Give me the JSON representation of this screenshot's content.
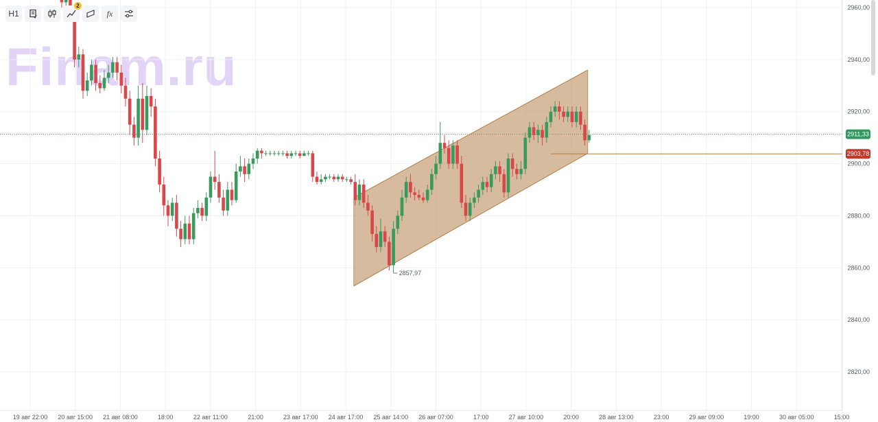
{
  "toolbar": {
    "interval_label": "H1",
    "fx_label": "fx",
    "indicators_badge": "2",
    "icons": [
      "instrument-info-icon",
      "chart-type-candles-icon",
      "indicators-icon",
      "drawing-tools-icon",
      "formula-icon",
      "settings-sliders-icon"
    ]
  },
  "watermark": "Finam.ru",
  "colors": {
    "up": "#3a9a5e",
    "down": "#d9474b",
    "channel_fill": "#c8a178",
    "channel_line": "#b07c44",
    "current_tag": "#2e9a5f",
    "level_tag": "#c0392b",
    "level_line": "#b07c44",
    "grid": "#eef0f3"
  },
  "chart_data": {
    "type": "candlestick",
    "y_axis": {
      "range": [
        2805,
        2966
      ],
      "ticks": [
        "2960,00",
        "2940,00",
        "2920,00",
        "2900,00",
        "2880,00",
        "2860,00",
        "2840,00",
        "2820,00"
      ],
      "tick_values": [
        2960,
        2940,
        2920,
        2900,
        2880,
        2860,
        2840,
        2820
      ]
    },
    "x_axis": {
      "ticks": [
        "19 авг 22:00",
        "20 авг 15:00",
        "21 авг 08:00",
        "18:00",
        "22 авг 11:00",
        "21:00",
        "23 авг 17:00",
        "24 авг 17:00",
        "25 авг 14:00",
        "26 авг 07:00",
        "17:00",
        "27 авг 10:00",
        "20:00",
        "28 авг 13:00",
        "23:00",
        "29 авг 09:00",
        "19:00",
        "30 авг 05:00",
        "15:00"
      ]
    },
    "grid": true,
    "current_price": {
      "value": 2911.33,
      "label": "2911,33"
    },
    "level_line": {
      "value": 2903.78,
      "label": "2903,78"
    },
    "low_annotation": {
      "value": 2857.97,
      "label": "2857,97"
    },
    "channel": {
      "lower_start": 2853,
      "lower_end": 2904,
      "upper_start": 2887,
      "upper_end": 2936
    },
    "candles": [
      [
        2965,
        2962,
        2967,
        2960
      ],
      [
        2962,
        2965,
        2967,
        2960
      ],
      [
        2965,
        2958,
        2967,
        2955
      ],
      [
        2958,
        2940,
        2961,
        2937
      ],
      [
        2940,
        2942,
        2945,
        2937
      ],
      [
        2942,
        2928,
        2944,
        2925
      ],
      [
        2928,
        2932,
        2935,
        2926
      ],
      [
        2932,
        2938,
        2940,
        2930
      ],
      [
        2938,
        2931,
        2940,
        2928
      ],
      [
        2931,
        2929,
        2934,
        2927
      ],
      [
        2929,
        2933,
        2936,
        2928
      ],
      [
        2933,
        2935,
        2938,
        2931
      ],
      [
        2935,
        2939,
        2941,
        2933
      ],
      [
        2939,
        2935,
        2941,
        2932
      ],
      [
        2935,
        2930,
        2938,
        2927
      ],
      [
        2930,
        2925,
        2933,
        2922
      ],
      [
        2925,
        2915,
        2928,
        2911
      ],
      [
        2915,
        2910,
        2918,
        2907
      ],
      [
        2910,
        2925,
        2930,
        2907
      ],
      [
        2925,
        2913,
        2931,
        2908
      ],
      [
        2913,
        2926,
        2930,
        2911
      ],
      [
        2926,
        2922,
        2929,
        2918
      ],
      [
        2922,
        2902,
        2925,
        2899
      ],
      [
        2902,
        2892,
        2905,
        2889
      ],
      [
        2892,
        2884,
        2895,
        2880
      ],
      [
        2884,
        2880,
        2886,
        2876
      ],
      [
        2880,
        2885,
        2887,
        2878
      ],
      [
        2885,
        2875,
        2888,
        2872
      ],
      [
        2875,
        2871,
        2878,
        2868
      ],
      [
        2871,
        2877,
        2880,
        2869
      ],
      [
        2877,
        2871,
        2880,
        2869
      ],
      [
        2871,
        2881,
        2883,
        2869
      ],
      [
        2881,
        2883,
        2886,
        2879
      ],
      [
        2883,
        2880,
        2885,
        2878
      ],
      [
        2880,
        2887,
        2889,
        2878
      ],
      [
        2887,
        2895,
        2897,
        2885
      ],
      [
        2895,
        2893,
        2905,
        2890
      ],
      [
        2893,
        2887,
        2896,
        2885
      ],
      [
        2887,
        2882,
        2890,
        2880
      ],
      [
        2882,
        2890,
        2893,
        2880
      ],
      [
        2890,
        2886,
        2893,
        2884
      ],
      [
        2886,
        2897,
        2900,
        2885
      ],
      [
        2897,
        2899,
        2903,
        2895
      ],
      [
        2899,
        2896,
        2902,
        2893
      ],
      [
        2896,
        2900,
        2902,
        2894
      ],
      [
        2900,
        2902,
        2904,
        2898
      ],
      [
        2902,
        2905,
        2906,
        2900
      ],
      [
        2905,
        2904,
        2906,
        2902
      ],
      [
        2904,
        2904,
        2905,
        2903
      ],
      [
        2904,
        2904,
        2905,
        2903
      ],
      [
        2904,
        2904,
        2905,
        2903
      ],
      [
        2904,
        2904,
        2905,
        2903
      ],
      [
        2904,
        2904,
        2905,
        2903
      ],
      [
        2904,
        2903,
        2905,
        2902
      ],
      [
        2903,
        2904,
        2905,
        2902
      ],
      [
        2904,
        2904,
        2905,
        2903
      ],
      [
        2904,
        2903,
        2905,
        2902
      ],
      [
        2903,
        2904,
        2905,
        2903
      ],
      [
        2904,
        2904,
        2905,
        2903
      ],
      [
        2904,
        2895,
        2905,
        2893
      ],
      [
        2895,
        2893,
        2897,
        2892
      ],
      [
        2893,
        2894,
        2896,
        2892
      ],
      [
        2894,
        2895,
        2896,
        2893
      ],
      [
        2895,
        2895,
        2896,
        2894
      ],
      [
        2895,
        2894,
        2896,
        2893
      ],
      [
        2894,
        2895,
        2896,
        2893
      ],
      [
        2895,
        2894,
        2896,
        2893
      ],
      [
        2894,
        2894,
        2895,
        2893
      ],
      [
        2894,
        2893,
        2895,
        2892
      ],
      [
        2893,
        2886,
        2896,
        2884
      ],
      [
        2886,
        2892,
        2894,
        2884
      ],
      [
        2892,
        2885,
        2894,
        2883
      ],
      [
        2885,
        2882,
        2888,
        2880
      ],
      [
        2882,
        2873,
        2884,
        2870
      ],
      [
        2873,
        2868,
        2876,
        2866
      ],
      [
        2868,
        2874,
        2879,
        2866
      ],
      [
        2874,
        2870,
        2876,
        2868
      ],
      [
        2870,
        2861,
        2872,
        2859
      ],
      [
        2861,
        2875,
        2878,
        2858
      ],
      [
        2875,
        2880,
        2882,
        2873
      ],
      [
        2880,
        2887,
        2890,
        2878
      ],
      [
        2887,
        2893,
        2895,
        2885
      ],
      [
        2893,
        2889,
        2896,
        2887
      ],
      [
        2889,
        2888,
        2891,
        2886
      ],
      [
        2888,
        2887,
        2890,
        2886
      ],
      [
        2887,
        2886,
        2889,
        2885
      ],
      [
        2886,
        2890,
        2892,
        2885
      ],
      [
        2890,
        2896,
        2898,
        2888
      ],
      [
        2896,
        2900,
        2903,
        2894
      ],
      [
        2900,
        2908,
        2916,
        2898
      ],
      [
        2908,
        2906,
        2911,
        2904
      ],
      [
        2906,
        2900,
        2909,
        2898
      ],
      [
        2900,
        2907,
        2909,
        2898
      ],
      [
        2907,
        2900,
        2909,
        2898
      ],
      [
        2900,
        2885,
        2903,
        2883
      ],
      [
        2885,
        2880,
        2888,
        2878
      ],
      [
        2880,
        2885,
        2887,
        2878
      ],
      [
        2885,
        2887,
        2889,
        2883
      ],
      [
        2887,
        2890,
        2892,
        2885
      ],
      [
        2890,
        2893,
        2895,
        2888
      ],
      [
        2893,
        2891,
        2895,
        2889
      ],
      [
        2891,
        2896,
        2898,
        2889
      ],
      [
        2896,
        2899,
        2901,
        2894
      ],
      [
        2899,
        2896,
        2901,
        2893
      ],
      [
        2896,
        2889,
        2898,
        2887
      ],
      [
        2889,
        2902,
        2904,
        2887
      ],
      [
        2902,
        2898,
        2904,
        2895
      ],
      [
        2898,
        2896,
        2900,
        2894
      ],
      [
        2896,
        2898,
        2901,
        2894
      ],
      [
        2898,
        2910,
        2912,
        2896
      ],
      [
        2910,
        2914,
        2916,
        2908
      ],
      [
        2914,
        2911,
        2916,
        2909
      ],
      [
        2911,
        2913,
        2915,
        2908
      ],
      [
        2913,
        2910,
        2915,
        2907
      ],
      [
        2910,
        2916,
        2918,
        2908
      ],
      [
        2916,
        2920,
        2922,
        2914
      ],
      [
        2920,
        2922,
        2924,
        2918
      ],
      [
        2922,
        2920,
        2924,
        2917
      ],
      [
        2920,
        2918,
        2922,
        2916
      ],
      [
        2918,
        2920,
        2922,
        2916
      ],
      [
        2920,
        2916,
        2922,
        2914
      ],
      [
        2916,
        2920,
        2922,
        2914
      ],
      [
        2920,
        2915,
        2922,
        2913
      ],
      [
        2915,
        2909,
        2917,
        2907
      ],
      [
        2909,
        2911,
        2913,
        2908
      ]
    ]
  }
}
